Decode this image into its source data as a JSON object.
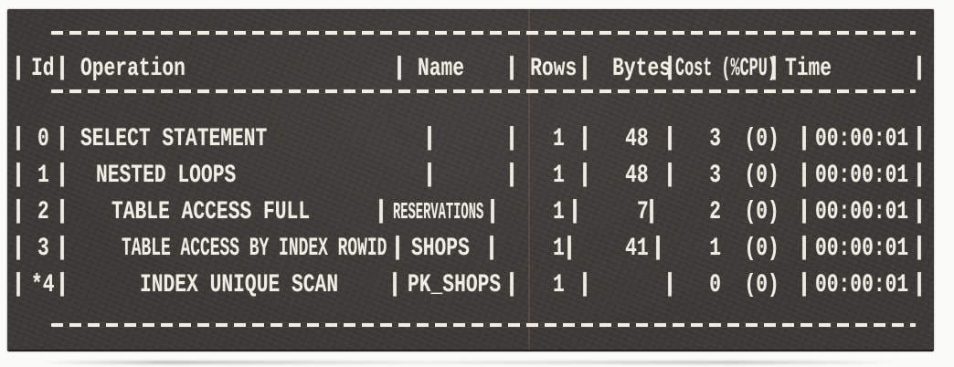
{
  "glyphs": {
    "pipe": "|"
  },
  "colors": {
    "panel_bg": "#3e3a37",
    "text_ink": "#f0ede5",
    "page_bg": "#fbfbf8",
    "scan_artifact_red": "#ba6e64"
  },
  "plan_table": {
    "columns": {
      "id": "Id",
      "operation": "Operation",
      "name": "Name",
      "rows": "Rows",
      "bytes": "Bytes",
      "cost": "Cost (%CPU)",
      "time": "Time"
    },
    "rows": [
      {
        "id": "0",
        "operation": "SELECT STATEMENT",
        "name": "",
        "rows": "1",
        "bytes": "48",
        "cost": "3  (0)",
        "time": "00:00:01"
      },
      {
        "id": "1",
        "operation": "NESTED LOOPS",
        "name": "",
        "rows": "1",
        "bytes": "48",
        "cost": "3  (0)",
        "time": "00:00:01"
      },
      {
        "id": "2",
        "operation": "TABLE ACCESS FULL",
        "name": "RESERVATIONS",
        "rows": "1",
        "bytes": "7",
        "cost": "2  (0)",
        "time": "00:00:01"
      },
      {
        "id": "3",
        "operation": "TABLE ACCESS BY INDEX ROWID",
        "name": "SHOPS",
        "rows": "1",
        "bytes": "41",
        "cost": "1  (0)",
        "time": "00:00:01"
      },
      {
        "id": "*4",
        "operation": "INDEX UNIQUE SCAN",
        "name": "PK_SHOPS",
        "rows": "1",
        "bytes": "",
        "cost": "0  (0)",
        "time": "00:00:01"
      }
    ]
  }
}
